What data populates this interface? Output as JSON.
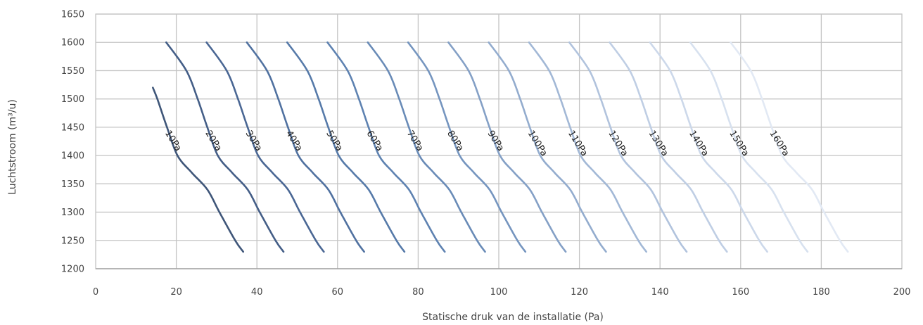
{
  "chart_data": {
    "type": "line",
    "xlabel": "Statische druk van de installatie (Pa)",
    "ylabel": "Luchtstroom (m³/u)",
    "xlim": [
      0,
      200
    ],
    "ylim": [
      1200,
      1650
    ],
    "x_ticks": [
      0,
      20,
      40,
      60,
      80,
      100,
      120,
      140,
      160,
      180,
      200
    ],
    "y_ticks": [
      1200,
      1250,
      1300,
      1350,
      1400,
      1450,
      1500,
      1550,
      1600,
      1650
    ],
    "grid": true,
    "base_curve": {
      "y": [
        1600,
        1550,
        1500,
        1450,
        1400,
        1370,
        1340,
        1300,
        1250,
        1230
      ],
      "x": [
        7.5,
        12.5,
        15.3,
        17.7,
        20.3,
        23.8,
        27.7,
        30.7,
        34.6,
        36.6
      ]
    },
    "series": [
      {
        "label": "10Pa",
        "x_offset": 0,
        "y_start": 1520,
        "color": "#3f5679"
      },
      {
        "label": "20Pa",
        "x_offset": 10,
        "y_start": 1600,
        "color": "#445e87"
      },
      {
        "label": "30Pa",
        "x_offset": 20,
        "y_start": 1600,
        "color": "#4a6794"
      },
      {
        "label": "40Pa",
        "x_offset": 30,
        "y_start": 1600,
        "color": "#5071a0"
      },
      {
        "label": "50Pa",
        "x_offset": 40,
        "y_start": 1600,
        "color": "#567aa9"
      },
      {
        "label": "60Pa",
        "x_offset": 50,
        "y_start": 1600,
        "color": "#5e82b1"
      },
      {
        "label": "70Pa",
        "x_offset": 60,
        "y_start": 1600,
        "color": "#698bb7"
      },
      {
        "label": "80Pa",
        "x_offset": 70,
        "y_start": 1600,
        "color": "#7595bf"
      },
      {
        "label": "90Pa",
        "x_offset": 80,
        "y_start": 1600,
        "color": "#84a0c6"
      },
      {
        "label": "100Pa",
        "x_offset": 90,
        "y_start": 1600,
        "color": "#93acce"
      },
      {
        "label": "110Pa",
        "x_offset": 100,
        "y_start": 1600,
        "color": "#a2b8d6"
      },
      {
        "label": "120Pa",
        "x_offset": 110,
        "y_start": 1600,
        "color": "#b1c3dd"
      },
      {
        "label": "130Pa",
        "x_offset": 120,
        "y_start": 1600,
        "color": "#bfcee4"
      },
      {
        "label": "140Pa",
        "x_offset": 130,
        "y_start": 1600,
        "color": "#ccd8ea"
      },
      {
        "label": "150Pa",
        "x_offset": 140,
        "y_start": 1600,
        "color": "#d7e1ef"
      },
      {
        "label": "160Pa",
        "x_offset": 150,
        "y_start": 1600,
        "color": "#e2e9f4"
      }
    ]
  }
}
